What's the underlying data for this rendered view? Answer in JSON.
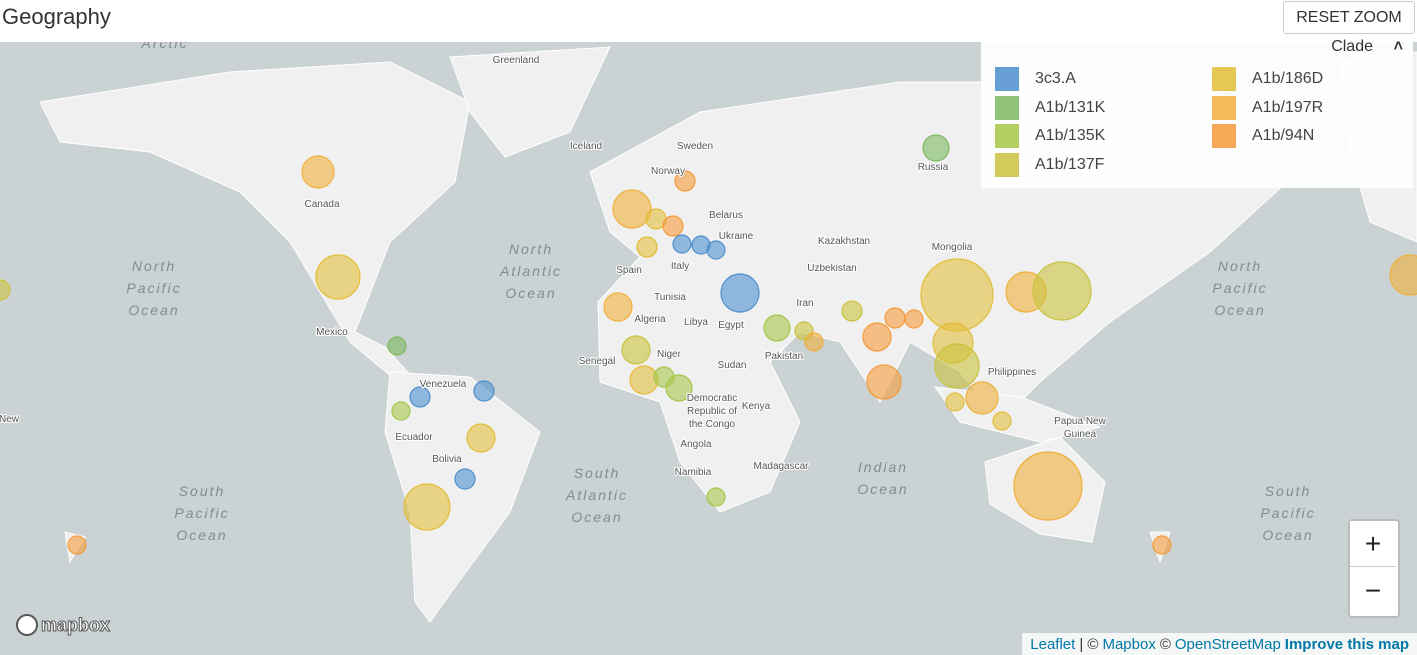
{
  "header": {
    "title": "Geography",
    "reset_button": "RESET ZOOM"
  },
  "legend": {
    "title": "Clade",
    "items": [
      {
        "label": "3c3.A",
        "color": "#4E8FCE"
      },
      {
        "label": "A1b/131K",
        "color": "#7DB960"
      },
      {
        "label": "A1b/135K",
        "color": "#A6C74A"
      },
      {
        "label": "A1b/137F",
        "color": "#C9C33E"
      },
      {
        "label": "A1b/186D",
        "color": "#E2BE3A"
      },
      {
        "label": "A1b/197R",
        "color": "#F0B03A"
      },
      {
        "label": "A1b/94N",
        "color": "#F59B3B"
      }
    ]
  },
  "map": {
    "oceans": [
      [
        "North",
        "Atlantic",
        "Ocean"
      ],
      [
        "North",
        "Pacific",
        "Ocean"
      ],
      [
        "North",
        "Pacific",
        "Ocean"
      ],
      [
        "South",
        "Atlantic",
        "Ocean"
      ],
      [
        "South",
        "Pacific",
        "Ocean"
      ],
      [
        "South",
        "Pacific",
        "Ocean"
      ],
      [
        "Indian",
        "Ocean"
      ],
      [
        "Arctic"
      ]
    ],
    "places": [
      "Greenland",
      "Iceland",
      "Sweden",
      "Norway",
      "Russia",
      "Canada",
      "Belarus",
      "Ukraine",
      "Kazakhstan",
      "Mongolia",
      "Spain",
      "Italy",
      "Uzbekistan",
      "Tunisia",
      "Iran",
      "Mexico",
      "Algeria",
      "Libya",
      "Egypt",
      "Pakistan",
      "Niger",
      "Senegal",
      "Sudan",
      "Philippines",
      "Venezuela",
      "Democratic",
      "Republic of",
      "the Congo",
      "Kenya",
      "Papua New",
      "Guinea",
      "Ecuador",
      "Angola",
      "Bolivia",
      "Madagascar",
      "Namibia",
      "New"
    ]
  },
  "zoom": {
    "in": "+",
    "out": "−"
  },
  "attribution": {
    "logo": "mapbox",
    "leaflet": "Leaflet",
    "sep1": "| ©",
    "mapbox": "Mapbox",
    "sep2": "©",
    "osm": "OpenStreetMap",
    "improve": "Improve this map"
  }
}
